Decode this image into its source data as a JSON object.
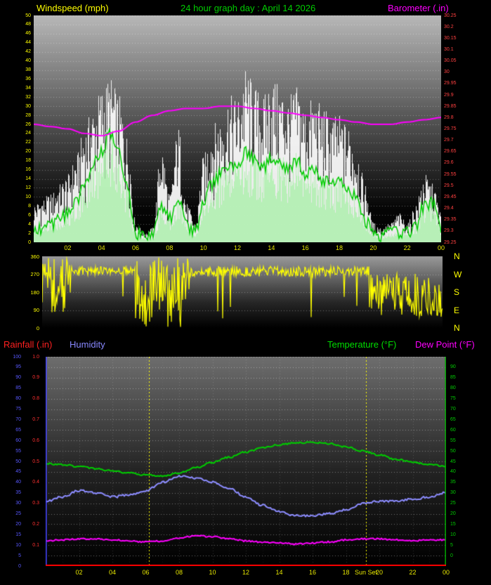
{
  "page": {
    "background": "#000000"
  },
  "header": {
    "windspeed_label": "Windspeed (mph)",
    "title": "24 hour graph day : April 14 2026",
    "barometer_label": "Barometer (.in)",
    "windspeed_color": "#ffff00",
    "title_color": "#00cc00",
    "barometer_color": "#ff00ff"
  },
  "legend": {
    "rainfall": "Rainfall (.in)",
    "humidity": "Humidity",
    "temperature": "Temperature (°F)",
    "dew_point": "Dew Point (°F)",
    "rainfall_color": "#ff2020",
    "humidity_color": "#8888ff",
    "temperature_color": "#00dd00",
    "dew_point_color": "#ff00ff"
  },
  "x_axis": {
    "tick_labels": [
      "02",
      "04",
      "06",
      "08",
      "10",
      "12",
      "14",
      "16",
      "18",
      "20",
      "22",
      "00"
    ],
    "hours": [
      2,
      4,
      6,
      8,
      10,
      12,
      14,
      16,
      18,
      20,
      22,
      24
    ],
    "color": "#e8e800"
  },
  "compass": {
    "letters": [
      "N",
      "W",
      "S",
      "E",
      "N"
    ],
    "color": "#ffff00"
  },
  "sun": {
    "set_label": "Sun Set",
    "rise_hour": 6.2,
    "set_hour": 19.2,
    "marker_color": "#ffff00"
  },
  "chart_data": [
    {
      "id": "windspeed_barometer",
      "type": "line",
      "title": "24 hour graph day : April 14 2026",
      "x_range_hours": [
        0,
        24
      ],
      "y_left": {
        "label": "Windspeed (mph)",
        "min": 0,
        "max": 50,
        "step": 2,
        "color": "#ffff00"
      },
      "y_right": {
        "label": "Barometer (.in)",
        "min": 29.25,
        "max": 30.25,
        "step": 0.05,
        "color": "#ff4040"
      },
      "series": [
        {
          "name": "wind_gust_mph",
          "color": "#ffffff",
          "style": "spikes",
          "axis": "left",
          "interval_hours": 0.5,
          "values": [
            8,
            9,
            10,
            12,
            14,
            18,
            24,
            28,
            32,
            34,
            30,
            22,
            4,
            2,
            3,
            20,
            10,
            24,
            8,
            4,
            18,
            24,
            26,
            30,
            30,
            36,
            32,
            30,
            34,
            32,
            30,
            32,
            28,
            30,
            28,
            26,
            26,
            24,
            20,
            12,
            4,
            3,
            4,
            6,
            4,
            8,
            14,
            12,
            6
          ]
        },
        {
          "name": "wind_average_mph",
          "color": "#00cc00",
          "style": "line",
          "axis": "left",
          "interval_hours": 0.5,
          "values": [
            3,
            3,
            4,
            5,
            6,
            9,
            13,
            17,
            20,
            24,
            20,
            12,
            2,
            1,
            1,
            8,
            5,
            10,
            4,
            2,
            9,
            13,
            15,
            17,
            16,
            20,
            18,
            16,
            19,
            18,
            16,
            18,
            15,
            16,
            14,
            13,
            13,
            12,
            10,
            5,
            2,
            1,
            2,
            2,
            2,
            3,
            8,
            9,
            3
          ]
        },
        {
          "name": "barometer_in",
          "color": "#ff00ff",
          "style": "line",
          "axis": "right",
          "interval_hours": 1,
          "values": [
            29.77,
            29.76,
            29.75,
            29.73,
            29.72,
            29.74,
            29.78,
            29.81,
            29.83,
            29.84,
            29.84,
            29.85,
            29.85,
            29.84,
            29.83,
            29.82,
            29.81,
            29.8,
            29.79,
            29.78,
            29.77,
            29.77,
            29.78,
            29.79,
            29.8
          ]
        }
      ]
    },
    {
      "id": "wind_direction",
      "type": "line",
      "x_range_hours": [
        0,
        24
      ],
      "y_left": {
        "min": 0,
        "max": 360,
        "step": 90,
        "tick_labels": [
          "360",
          "270",
          "180",
          "90",
          "0"
        ],
        "color": "#ffff00"
      },
      "y_right_letters": [
        "N",
        "W",
        "S",
        "E",
        "N"
      ],
      "series": [
        {
          "name": "wind_direction_deg",
          "color": "#ffff00",
          "segments": [
            {
              "from": 0,
              "to": 1.75,
              "base": 210,
              "spread": 150
            },
            {
              "from": 1.75,
              "to": 5.6,
              "base": 288,
              "spread": 22
            },
            {
              "from": 5.6,
              "to": 8.8,
              "base": 180,
              "spread": 175
            },
            {
              "from": 8.8,
              "to": 19.6,
              "base": 284,
              "spread": 26
            },
            {
              "from": 19.6,
              "to": 23.2,
              "base": 165,
              "spread": 110
            },
            {
              "from": 23.2,
              "to": 24,
              "base": 140,
              "spread": 90
            }
          ]
        }
      ]
    },
    {
      "id": "temp_humidity_rain_dewpoint",
      "type": "line",
      "x_range_hours": [
        0,
        24
      ],
      "y_left_humidity": {
        "min": 0,
        "max": 100,
        "step": 5,
        "color": "#5858ff"
      },
      "y_left_rainfall": {
        "min": 0,
        "max": 1.0,
        "step": 0.1,
        "color": "#ff3030"
      },
      "y_right_temperature": {
        "min": 0,
        "max": 90,
        "step": 5,
        "color": "#00cc00"
      },
      "series": [
        {
          "name": "temperature_f",
          "color": "#00cc00",
          "axis": "temperature",
          "interval_hours": 1,
          "values": [
            44,
            43.5,
            42.5,
            41.5,
            40.5,
            39.5,
            38.5,
            38,
            39.5,
            42,
            44.5,
            47,
            49.5,
            51.5,
            53,
            54,
            54,
            53.5,
            52,
            50,
            48,
            46,
            44.5,
            43.5,
            42.5
          ]
        },
        {
          "name": "humidity_pct",
          "color": "#8c8cff",
          "axis": "humidity",
          "interval_hours": 1,
          "values": [
            31,
            33,
            36,
            35,
            33,
            34,
            36,
            40,
            43,
            42,
            40,
            37,
            33,
            29,
            26,
            24,
            24,
            25,
            27,
            30,
            31,
            31,
            32,
            33,
            35
          ]
        },
        {
          "name": "dew_point_f",
          "color": "#ff00ff",
          "axis": "temperature",
          "interval_hours": 1,
          "values": [
            7,
            7.5,
            8,
            8,
            7.5,
            7,
            6.5,
            7,
            8.5,
            9.5,
            9,
            8,
            7,
            6.5,
            6,
            5.5,
            6,
            6.5,
            7.5,
            8,
            8,
            7.5,
            7,
            7.5,
            7.5
          ]
        },
        {
          "name": "rainfall_in",
          "color": "#ff0000",
          "axis": "rainfall",
          "interval_hours": 24,
          "values": [
            0,
            0
          ]
        }
      ],
      "annotations": {
        "sun_rise_hour": 6.2,
        "sun_set_hour": 19.2,
        "sun_set_label": "Sun Set"
      }
    }
  ]
}
